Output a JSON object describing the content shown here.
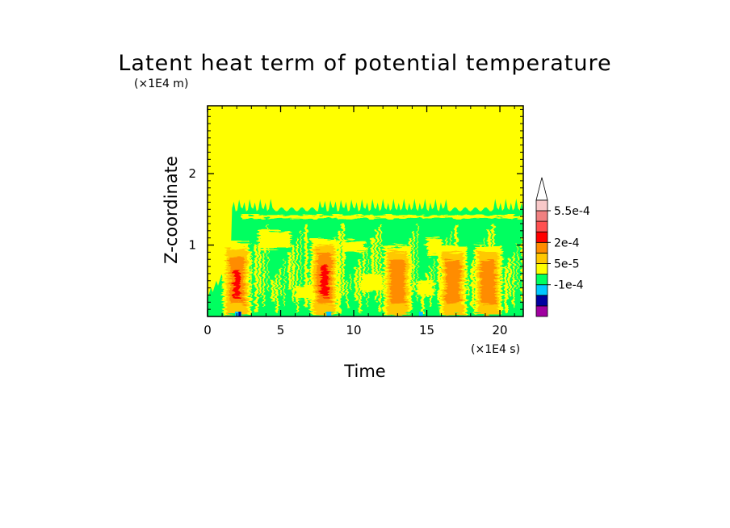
{
  "chart_data": {
    "type": "heatmap",
    "title": "Latent heat term of potential temperature",
    "xlabel": "Time",
    "ylabel": "Z-coordinate",
    "x_unit": "(×1E4 s)",
    "y_unit": "(×1E4 m)",
    "xlim": [
      0,
      21.6
    ],
    "ylim": [
      0,
      2.95
    ],
    "x_ticks": [
      0,
      5,
      10,
      15,
      20
    ],
    "x_tick_labels": [
      "0",
      "5",
      "10",
      "15",
      "20"
    ],
    "y_ticks": [
      1,
      2
    ],
    "y_tick_labels": [
      "1",
      "2"
    ],
    "background_level_color": "#ffff00",
    "colorbar": {
      "levels": [
        {
          "color": "#a000a0"
        },
        {
          "color": "#0000a0"
        },
        {
          "color": "#00c8ff"
        },
        {
          "color": "#00ff60"
        },
        {
          "color": "#ffff00"
        },
        {
          "color": "#ffc800"
        },
        {
          "color": "#ff8c00"
        },
        {
          "color": "#ff0000"
        },
        {
          "color": "#ff5050"
        },
        {
          "color": "#f08080"
        },
        {
          "color": "#f8c8c8"
        }
      ],
      "labels": [
        {
          "text": "-1e-4",
          "value": -0.0001,
          "level": 3
        },
        {
          "text": "5e-5",
          "value": 5e-05,
          "level": 5
        },
        {
          "text": "2e-4",
          "value": 0.0002,
          "level": 7
        },
        {
          "text": "5.5e-4",
          "value": 0.00055,
          "level": 10
        }
      ],
      "extend": "max"
    },
    "features": {
      "green_layer_top": 1.5,
      "convective_events": [
        {
          "t": 2.0,
          "z_top": 0.95,
          "peak": "red"
        },
        {
          "t": 8.0,
          "z_top": 1.0,
          "peak": "red"
        },
        {
          "t": 13.0,
          "z_top": 0.9,
          "peak": "orange"
        },
        {
          "t": 16.8,
          "z_top": 0.9,
          "peak": "orange"
        },
        {
          "t": 19.2,
          "z_top": 0.9,
          "peak": "orange"
        }
      ]
    }
  }
}
